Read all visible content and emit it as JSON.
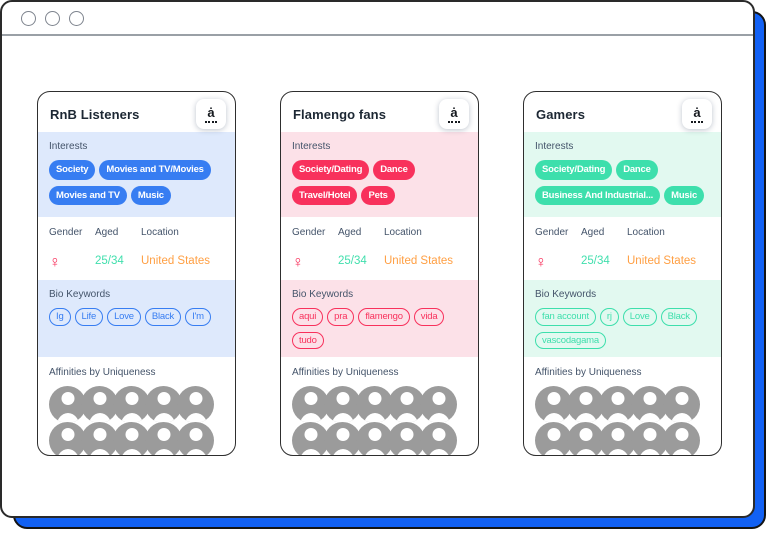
{
  "window": {
    "frame_color": "#1261F4",
    "controls": [
      "window-control-1",
      "window-control-2",
      "window-control-3"
    ]
  },
  "palette": {
    "gender_color": "#F8315C",
    "aged_color": "#41DFAD",
    "location_color": "#FF9F43"
  },
  "labels": {
    "interests": "Interests",
    "gender": "Gender",
    "aged": "Aged",
    "location": "Location",
    "bio_keywords": "Bio Keywords",
    "affinities": "Affinities by Uniqueness"
  },
  "logo_glyph": "ȧ",
  "cards": [
    {
      "title": "RnB Listeners",
      "theme": {
        "accent": "#377DF2",
        "tint": "#DEE9FC"
      },
      "interests": [
        "Society",
        "Movies and TV/Movies",
        "Movies and TV",
        "Music"
      ],
      "demographics": {
        "gender_symbol": "♀",
        "aged": "25/34",
        "location": "United States"
      },
      "bio_keywords": [
        "Ig",
        "Life",
        "Love",
        "Black",
        "I'm"
      ],
      "avatar_count": 10
    },
    {
      "title": "Flamengo fans",
      "theme": {
        "accent": "#F8315C",
        "tint": "#FCE1E8"
      },
      "interests": [
        "Society/Dating",
        "Dance",
        "Travel/Hotel",
        "Pets"
      ],
      "demographics": {
        "gender_symbol": "♀",
        "aged": "25/34",
        "location": "United States"
      },
      "bio_keywords": [
        "aqui",
        "pra",
        "flamengo",
        "vida",
        "tudo"
      ],
      "avatar_count": 10
    },
    {
      "title": "Gamers",
      "theme": {
        "accent": "#3DDFAC",
        "tint": "#E2F9F0"
      },
      "interests": [
        "Society/Dating",
        "Dance",
        "Business And Industrial...",
        "Music"
      ],
      "demographics": {
        "gender_symbol": "♀",
        "aged": "25/34",
        "location": "United States"
      },
      "bio_keywords": [
        "fan account",
        "rj",
        "Love",
        "Black",
        "vascodagama"
      ],
      "avatar_count": 10
    }
  ]
}
